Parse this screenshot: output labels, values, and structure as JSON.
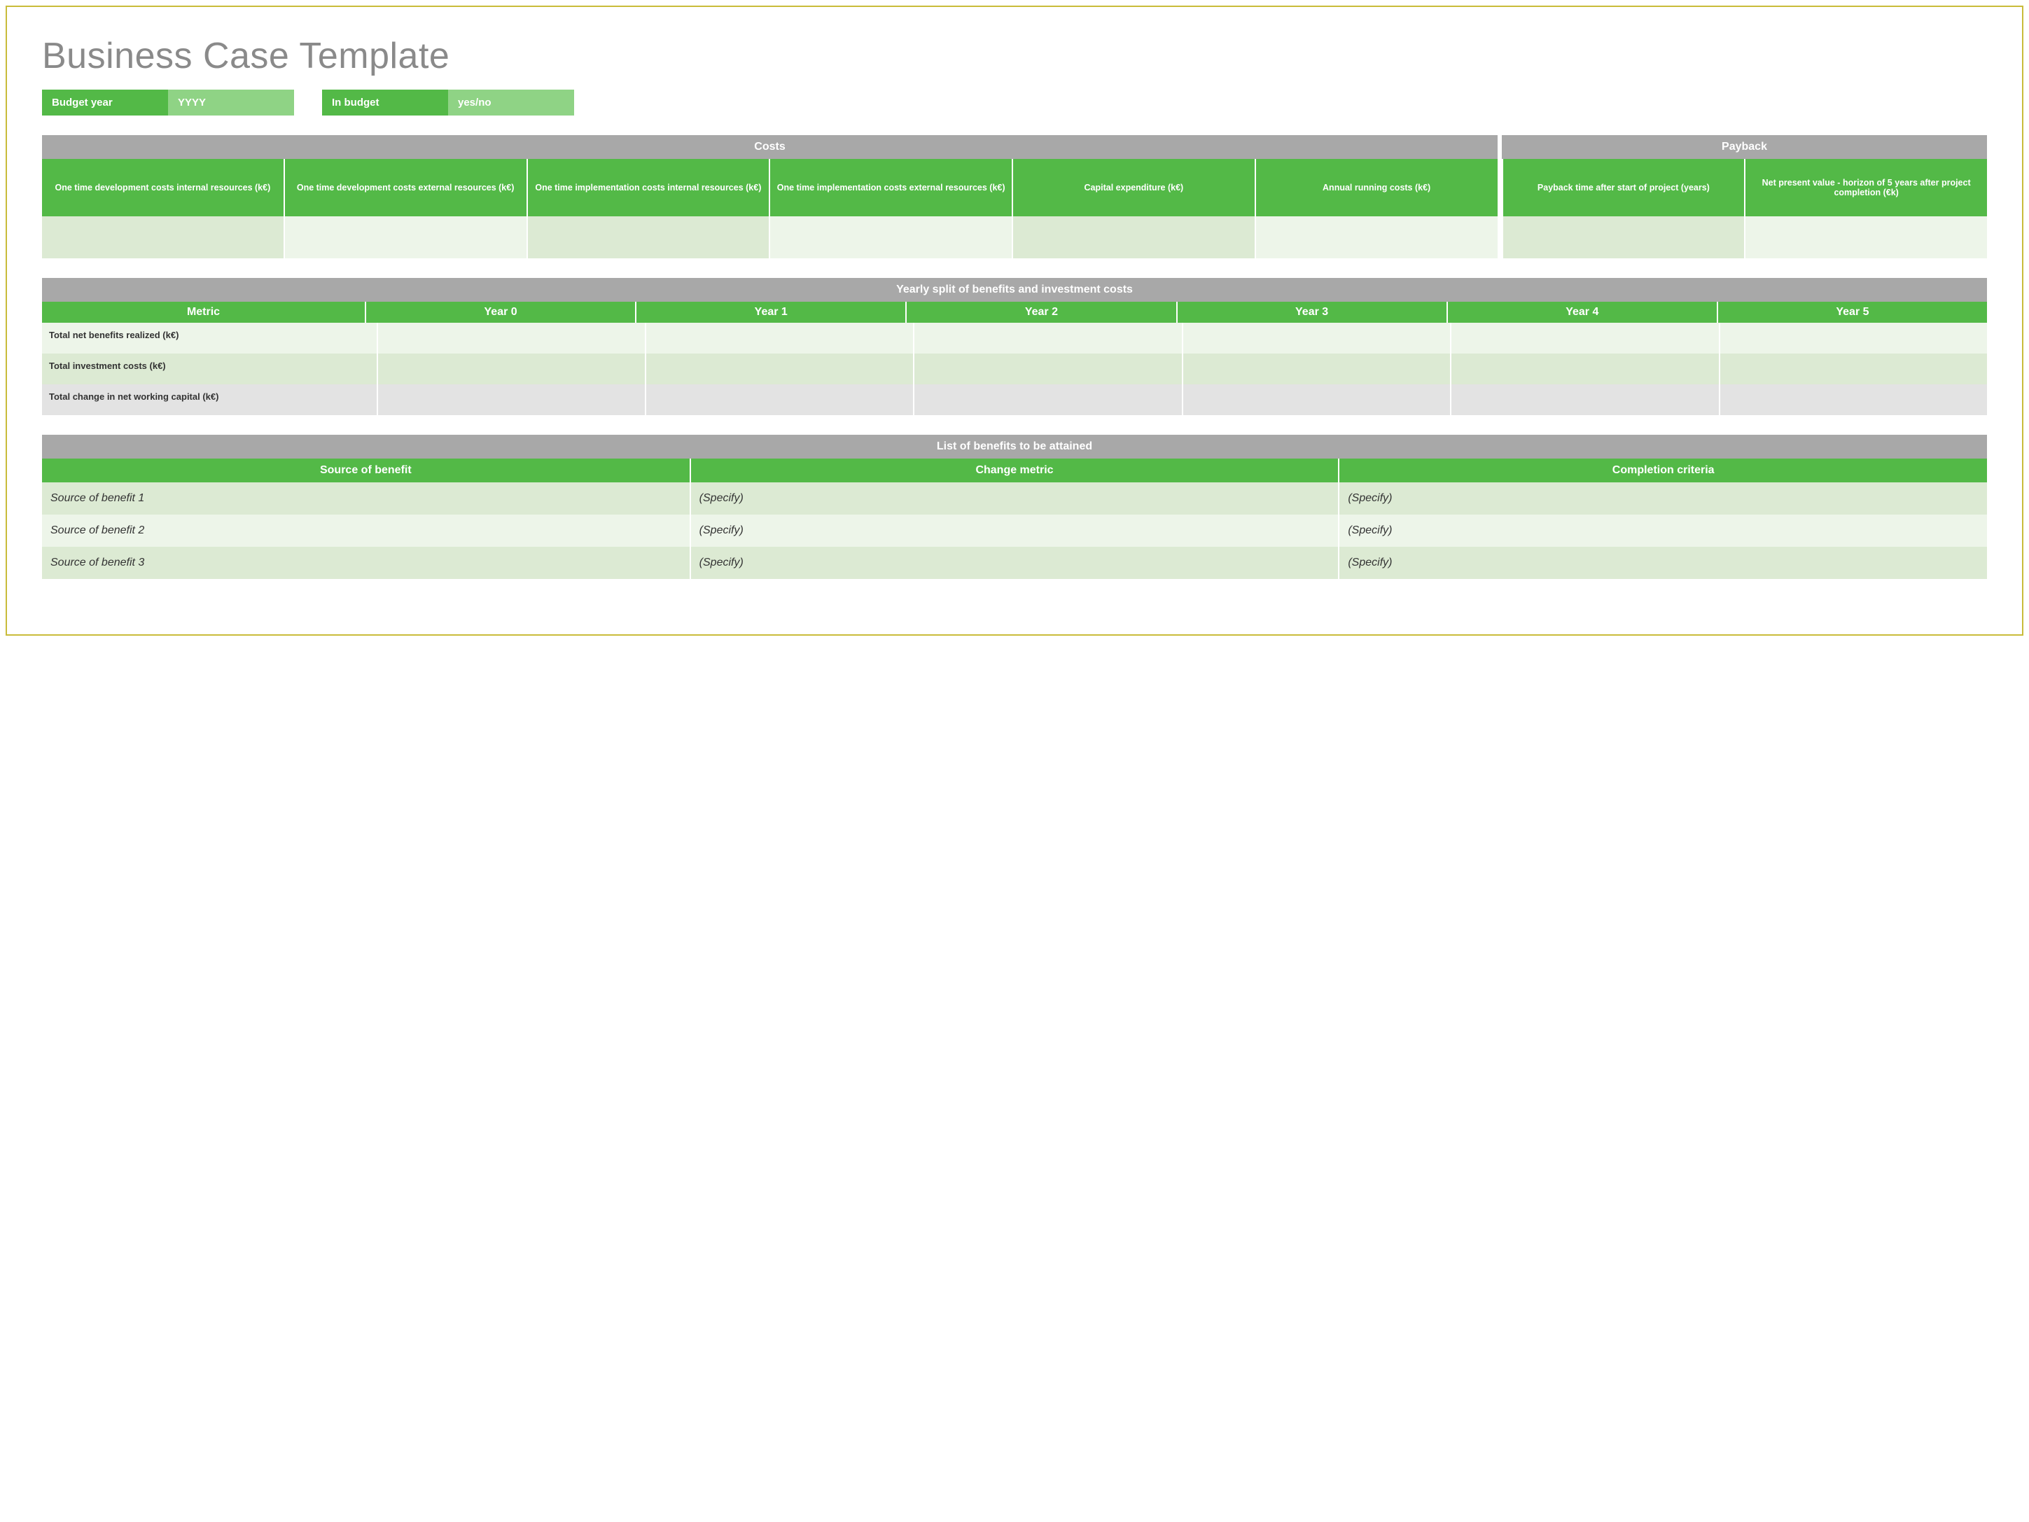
{
  "colors": {
    "border": "#c9bc3a",
    "title_text": "#8a8a8a",
    "green_dark": "#53b947",
    "green_light": "#8fd385",
    "gray_bar": "#a8a8a8",
    "row_lightgreen": "#dcead3",
    "row_palegreen": "#edf5e9",
    "row_lightgray": "#e3e3e3",
    "white": "#ffffff",
    "body_text": "#333333"
  },
  "title": "Business Case Template",
  "info": {
    "budget_year_label": "Budget year",
    "budget_year_value": "YYYY",
    "in_budget_label": "In budget",
    "in_budget_value": "yes/no"
  },
  "section_headers": {
    "costs": "Costs",
    "payback": "Payback",
    "yearly_split": "Yearly split of benefits and investment costs",
    "benefits_list": "List of benefits to be attained"
  },
  "costs_columns": [
    "One time development costs internal resources (k€)",
    "One time development costs external resources (k€)",
    "One time implementation costs internal resources (k€)",
    "One time implementation costs external resources (k€)",
    "Capital expenditure (k€)",
    "Annual running costs (k€)"
  ],
  "payback_columns": [
    "Payback time after start of project (years)",
    "Net present value - horizon of 5 years after project completion (€k)"
  ],
  "yearly": {
    "columns": [
      "Metric",
      "Year 0",
      "Year 1",
      "Year 2",
      "Year 3",
      "Year 4",
      "Year 5"
    ],
    "rows": [
      {
        "label": "Total net benefits realized (k€)",
        "bg": "palegreen"
      },
      {
        "label": "Total investment costs (k€)",
        "bg": "lightgreen"
      },
      {
        "label": "Total change in net working capital (k€)",
        "bg": "lightgray"
      }
    ]
  },
  "benefits": {
    "columns": [
      "Source of benefit",
      "Change metric",
      "Completion criteria"
    ],
    "rows": [
      {
        "source": "Source of benefit  1",
        "metric": "(Specify)",
        "criteria": "(Specify)",
        "bg": "lightgreen"
      },
      {
        "source": "Source of benefit 2",
        "metric": "(Specify)",
        "criteria": "(Specify)",
        "bg": "palegreen"
      },
      {
        "source": "Source of benefit  3",
        "metric": "(Specify)",
        "criteria": "(Specify)",
        "bg": "lightgreen"
      }
    ]
  }
}
